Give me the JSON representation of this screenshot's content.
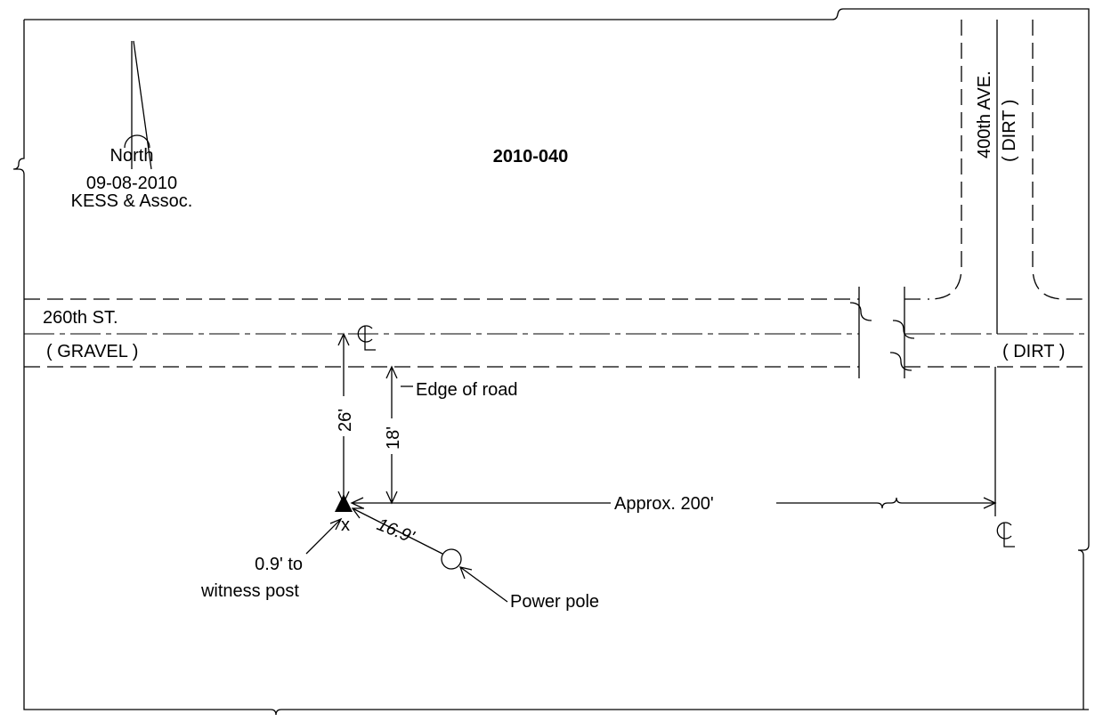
{
  "north": {
    "label": "North",
    "date": "09-08-2010",
    "company": "KESS & Assoc."
  },
  "title": "2010-040",
  "roads": {
    "avenue": "400th AVE.",
    "avenue_surface": "( DIRT )",
    "street": "260th ST.",
    "street_surface": "( GRAVEL )",
    "street_surface_east": "( DIRT )"
  },
  "labels": {
    "edge": "Edge of road",
    "dist_centerline": "26'",
    "dist_edge": "18'",
    "dist_avenue": "Approx. 200'",
    "marker": "x",
    "dist_pole": "16.9'",
    "witness_1": "0.9' to",
    "witness_2": "witness post",
    "pole": "Power pole"
  }
}
